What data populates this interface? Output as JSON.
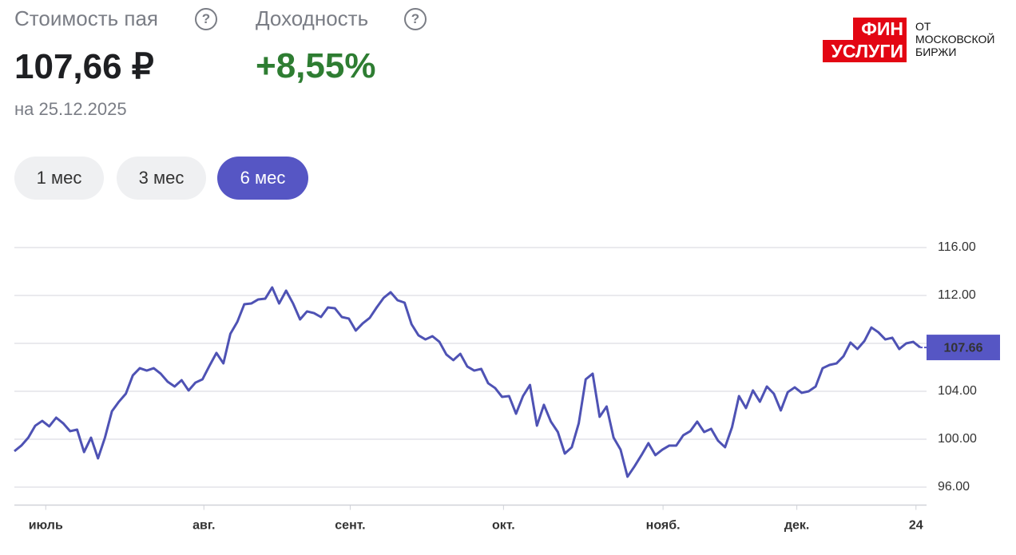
{
  "header": {
    "price_title": "Стоимость пая",
    "yield_title": "Доходность",
    "help": "?",
    "price": "107,66 ₽",
    "yield": "+8,55%",
    "date": "на 25.12.2025"
  },
  "periods": [
    "1 мес",
    "3 мес",
    "6 мес"
  ],
  "active_period": 2,
  "logo": {
    "line1": "ФИН",
    "line2": "УСЛУГИ",
    "caption": [
      "ОТ",
      "МОСКОВСКОЙ",
      "БИРЖИ"
    ]
  },
  "chart_data": {
    "type": "line",
    "color": "#4e52b4",
    "values": [
      99.0,
      99.47,
      100.13,
      101.13,
      101.53,
      101.07,
      101.8,
      101.33,
      100.67,
      100.8,
      98.93,
      100.13,
      98.4,
      100.13,
      102.33,
      103.13,
      103.8,
      105.33,
      105.93,
      105.73,
      105.93,
      105.47,
      104.8,
      104.4,
      104.93,
      104.07,
      104.73,
      105.0,
      106.13,
      107.2,
      106.33,
      108.8,
      109.8,
      111.27,
      111.33,
      111.67,
      111.73,
      112.67,
      111.33,
      112.4,
      111.33,
      110.0,
      110.67,
      110.53,
      110.2,
      111.0,
      110.93,
      110.2,
      110.07,
      109.07,
      109.67,
      110.13,
      111.0,
      111.8,
      112.27,
      111.6,
      111.4,
      109.6,
      108.67,
      108.33,
      108.6,
      108.13,
      107.07,
      106.6,
      107.13,
      106.07,
      105.73,
      105.87,
      104.67,
      104.27,
      103.53,
      103.6,
      102.13,
      103.6,
      104.53,
      101.13,
      102.87,
      101.47,
      100.6,
      98.8,
      99.33,
      101.33,
      105.0,
      105.47,
      101.87,
      102.73,
      100.13,
      99.13,
      96.87,
      97.73,
      98.67,
      99.67,
      98.67,
      99.13,
      99.47,
      99.47,
      100.33,
      100.67,
      101.47,
      100.6,
      100.87,
      99.87,
      99.33,
      101.0,
      103.6,
      102.6,
      104.07,
      103.13,
      104.4,
      103.8,
      102.4,
      103.93,
      104.33,
      103.87,
      104.0,
      104.4,
      105.93,
      106.2,
      106.33,
      106.93,
      108.07,
      107.53,
      108.2,
      109.33,
      108.93,
      108.33,
      108.47,
      107.53,
      108.0,
      108.13,
      107.66
    ],
    "xlim": [
      0,
      130
    ],
    "xticks": [
      {
        "value": 4.5,
        "label": "июль"
      },
      {
        "value": 27.2,
        "label": "авг."
      },
      {
        "value": 48.2,
        "label": "сент."
      },
      {
        "value": 70.2,
        "label": "окт."
      },
      {
        "value": 93.1,
        "label": "нояб."
      },
      {
        "value": 112.3,
        "label": "дек."
      },
      {
        "value": 129.4,
        "label": "24"
      }
    ],
    "ylim": [
      94.5,
      116.5
    ],
    "yticks": [
      {
        "value": 96,
        "label": "96.00"
      },
      {
        "value": 100,
        "label": "100.00"
      },
      {
        "value": 104,
        "label": "104.00"
      },
      {
        "value": 108,
        "label": "108.00"
      },
      {
        "value": 112,
        "label": "112.00"
      },
      {
        "value": 116,
        "label": "116.00"
      }
    ],
    "grid": true,
    "last_label": {
      "value": 107.66,
      "label": "107.66"
    },
    "last_label_color": "#5656c4"
  }
}
